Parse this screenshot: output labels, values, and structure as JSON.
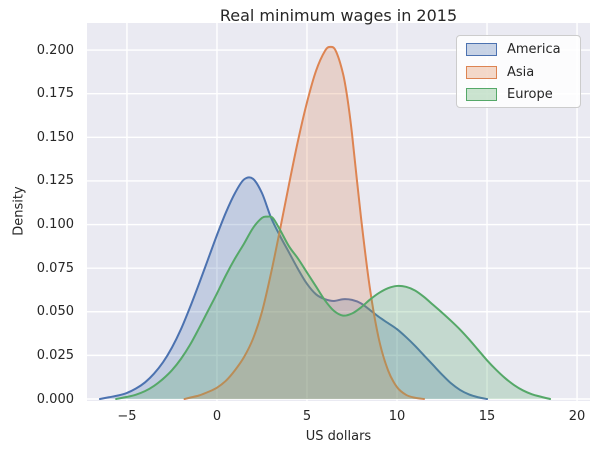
{
  "chart_data": {
    "type": "area",
    "subtype": "kde-density",
    "title": "Real minimum wages in 2015",
    "xlabel": "US dollars",
    "ylabel": "Density",
    "xlim": [
      -7.22,
      20.72
    ],
    "ylim": [
      0,
      0.2155
    ],
    "x_ticks": [
      -5,
      0,
      5,
      10,
      15,
      20
    ],
    "x_tick_labels": [
      "−5",
      "0",
      "5",
      "10",
      "15",
      "20"
    ],
    "y_ticks": [
      0.0,
      0.025,
      0.05,
      0.075,
      0.1,
      0.125,
      0.15,
      0.175,
      0.2
    ],
    "y_tick_labels": [
      "0.000",
      "0.025",
      "0.050",
      "0.075",
      "0.100",
      "0.125",
      "0.150",
      "0.175",
      "0.200"
    ],
    "grid": true,
    "legend_position": "upper right",
    "background": "#eaeaf2",
    "grid_color": "#ffffff",
    "text_color": "#262626",
    "fill_alpha": 0.25,
    "series": [
      {
        "name": "America",
        "color": "#4c72b0",
        "fill": "rgba(76,114,176,0.3)",
        "peaks": [
          {
            "x": 1.7,
            "y": 0.127
          },
          {
            "x": 7.2,
            "y": 0.057
          }
        ],
        "points": [
          [
            -6.5,
            0
          ],
          [
            -6,
            0.001
          ],
          [
            -5.5,
            0.002
          ],
          [
            -5,
            0.0035
          ],
          [
            -4.5,
            0.006
          ],
          [
            -4,
            0.0095
          ],
          [
            -3.5,
            0.0145
          ],
          [
            -3,
            0.021
          ],
          [
            -2.5,
            0.0295
          ],
          [
            -2,
            0.04
          ],
          [
            -1.5,
            0.0525
          ],
          [
            -1,
            0.066
          ],
          [
            -0.5,
            0.08
          ],
          [
            0,
            0.094
          ],
          [
            0.5,
            0.107
          ],
          [
            1,
            0.118
          ],
          [
            1.5,
            0.1258
          ],
          [
            2,
            0.1262
          ],
          [
            2.5,
            0.118
          ],
          [
            3,
            0.104
          ],
          [
            3.5,
            0.0935
          ],
          [
            4,
            0.084
          ],
          [
            4.5,
            0.0745
          ],
          [
            5,
            0.066
          ],
          [
            5.5,
            0.06
          ],
          [
            6,
            0.0572
          ],
          [
            6.5,
            0.0562
          ],
          [
            7,
            0.0572
          ],
          [
            7.5,
            0.0568
          ],
          [
            8,
            0.0548
          ],
          [
            8.5,
            0.051
          ],
          [
            9,
            0.047
          ],
          [
            9.5,
            0.0435
          ],
          [
            10,
            0.04
          ],
          [
            10.5,
            0.0355
          ],
          [
            11,
            0.0305
          ],
          [
            11.5,
            0.025
          ],
          [
            12,
            0.0195
          ],
          [
            12.5,
            0.014
          ],
          [
            13,
            0.009
          ],
          [
            13.5,
            0.0052
          ],
          [
            14,
            0.0026
          ],
          [
            14.5,
            0.001
          ],
          [
            15,
            0
          ]
        ]
      },
      {
        "name": "Asia",
        "color": "#dd8452",
        "fill": "rgba(221,132,82,0.3)",
        "peaks": [
          {
            "x": 6.2,
            "y": 0.202
          }
        ],
        "points": [
          [
            -1.8,
            0
          ],
          [
            -1.5,
            0.0008
          ],
          [
            -1,
            0.002
          ],
          [
            -0.5,
            0.004
          ],
          [
            0,
            0.0065
          ],
          [
            0.5,
            0.0105
          ],
          [
            1,
            0.0165
          ],
          [
            1.5,
            0.024
          ],
          [
            2,
            0.0345
          ],
          [
            2.5,
            0.05
          ],
          [
            3,
            0.072
          ],
          [
            3.5,
            0.097
          ],
          [
            4,
            0.123
          ],
          [
            4.5,
            0.148
          ],
          [
            5,
            0.17
          ],
          [
            5.5,
            0.188
          ],
          [
            6,
            0.1995
          ],
          [
            6.3,
            0.2018
          ],
          [
            6.6,
            0.1995
          ],
          [
            7,
            0.1865
          ],
          [
            7.25,
            0.172
          ],
          [
            7.5,
            0.152
          ],
          [
            8,
            0.104
          ],
          [
            8.5,
            0.063
          ],
          [
            9,
            0.034
          ],
          [
            9.5,
            0.0165
          ],
          [
            10,
            0.0068
          ],
          [
            10.5,
            0.0024
          ],
          [
            11,
            0.0007
          ],
          [
            11.5,
            0
          ]
        ]
      },
      {
        "name": "Europe",
        "color": "#55a868",
        "fill": "rgba(85,168,104,0.3)",
        "peaks": [
          {
            "x": 2.8,
            "y": 0.105
          },
          {
            "x": 10.1,
            "y": 0.065
          }
        ],
        "points": [
          [
            -5.6,
            0
          ],
          [
            -5,
            0.0012
          ],
          [
            -4.5,
            0.0025
          ],
          [
            -4,
            0.0045
          ],
          [
            -3.5,
            0.0075
          ],
          [
            -3,
            0.0115
          ],
          [
            -2.5,
            0.0165
          ],
          [
            -2,
            0.023
          ],
          [
            -1.5,
            0.031
          ],
          [
            -1,
            0.0405
          ],
          [
            -0.5,
            0.0505
          ],
          [
            0,
            0.0605
          ],
          [
            0.5,
            0.071
          ],
          [
            1,
            0.0805
          ],
          [
            1.5,
            0.089
          ],
          [
            2,
            0.098
          ],
          [
            2.5,
            0.1038
          ],
          [
            2.8,
            0.1045
          ],
          [
            3.1,
            0.1038
          ],
          [
            3.5,
            0.097
          ],
          [
            4,
            0.0875
          ],
          [
            4.5,
            0.0805
          ],
          [
            5,
            0.0725
          ],
          [
            5.5,
            0.0645
          ],
          [
            6,
            0.0565
          ],
          [
            6.5,
            0.0505
          ],
          [
            7,
            0.0478
          ],
          [
            7.5,
            0.049
          ],
          [
            8,
            0.0525
          ],
          [
            8.5,
            0.057
          ],
          [
            9,
            0.0608
          ],
          [
            9.5,
            0.0635
          ],
          [
            10,
            0.0648
          ],
          [
            10.5,
            0.0643
          ],
          [
            11,
            0.0622
          ],
          [
            11.5,
            0.0585
          ],
          [
            12,
            0.054
          ],
          [
            12.5,
            0.0495
          ],
          [
            13,
            0.0448
          ],
          [
            13.5,
            0.0398
          ],
          [
            14,
            0.0342
          ],
          [
            14.5,
            0.0282
          ],
          [
            15,
            0.0222
          ],
          [
            15.5,
            0.0168
          ],
          [
            16,
            0.012
          ],
          [
            16.5,
            0.008
          ],
          [
            17,
            0.0049
          ],
          [
            17.5,
            0.0027
          ],
          [
            18,
            0.0013
          ],
          [
            18.5,
            0
          ]
        ]
      }
    ]
  }
}
